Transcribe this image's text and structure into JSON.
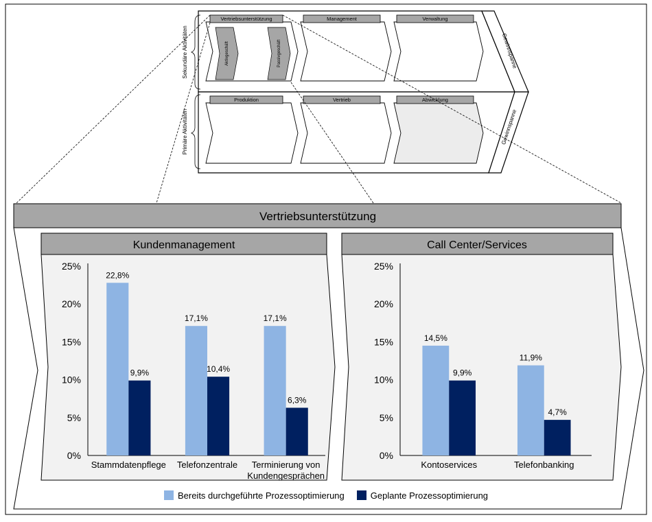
{
  "value_chain": {
    "row_labels": {
      "secondary": "Sekundäre Aktivitäten",
      "primary": "Primäre Aktivitäten"
    },
    "margin_labels": {
      "top": "Gewinnspanne",
      "bottom": "Gewinnspanne"
    },
    "secondary": [
      {
        "label": "Vertriebsunterstützung",
        "sub_items": [
          "Aktivgeschäft",
          "Passivgeschäft"
        ]
      },
      {
        "label": "Management"
      },
      {
        "label": "Verwaltung"
      }
    ],
    "primary": [
      {
        "label": "Produktion"
      },
      {
        "label": "Vertrieb"
      },
      {
        "label": "Abwicklung"
      }
    ]
  },
  "detail": {
    "title": "Vertriebsunterstützung"
  },
  "chart_data": [
    {
      "type": "bar",
      "title": "Kundenmanagement",
      "categories": [
        "Stammdatenpflege",
        "Telefonzentrale",
        "Terminierung von Kundengesprächen"
      ],
      "category_lines": [
        [
          "Stammdatenpflege"
        ],
        [
          "Telefonzentrale"
        ],
        [
          "Terminierung von",
          "Kundengesprächen"
        ]
      ],
      "series": [
        {
          "name": "Bereits durchgeführte Prozessoptimierung",
          "values": [
            22.8,
            17.1,
            17.1
          ],
          "labels": [
            "22,8%",
            "17,1%",
            "17,1%"
          ]
        },
        {
          "name": "Geplante Prozessoptimierung",
          "values": [
            9.9,
            10.4,
            6.3
          ],
          "labels": [
            "9,9%",
            "10,4%",
            "6,3%"
          ]
        }
      ],
      "ylim": [
        0,
        25
      ],
      "yticks": [
        "0%",
        "5%",
        "10%",
        "15%",
        "20%",
        "25%"
      ]
    },
    {
      "type": "bar",
      "title": "Call Center/Services",
      "categories": [
        "Kontoservices",
        "Telefonbanking"
      ],
      "category_lines": [
        [
          "Kontoservices"
        ],
        [
          "Telefonbanking"
        ]
      ],
      "series": [
        {
          "name": "Bereits durchgeführte Prozessoptimierung",
          "values": [
            14.5,
            11.9
          ],
          "labels": [
            "14,5%",
            "11,9%"
          ]
        },
        {
          "name": "Geplante Prozessoptimierung",
          "values": [
            9.9,
            4.7
          ],
          "labels": [
            "9,9%",
            "4,7%"
          ]
        }
      ],
      "ylim": [
        0,
        25
      ],
      "yticks": [
        "0%",
        "5%",
        "10%",
        "15%",
        "20%",
        "25%"
      ]
    }
  ],
  "legend": {
    "items": [
      {
        "label": "Bereits durchgeführte Prozessoptimierung",
        "color": "#8eb4e3"
      },
      {
        "label": "Geplante Prozessoptimierung",
        "color": "#002060"
      }
    ]
  },
  "colors": {
    "series_light": "#8eb4e3",
    "series_dark": "#002060",
    "header_gray": "#a6a6a6",
    "panel_gray": "#f2f2f2"
  }
}
